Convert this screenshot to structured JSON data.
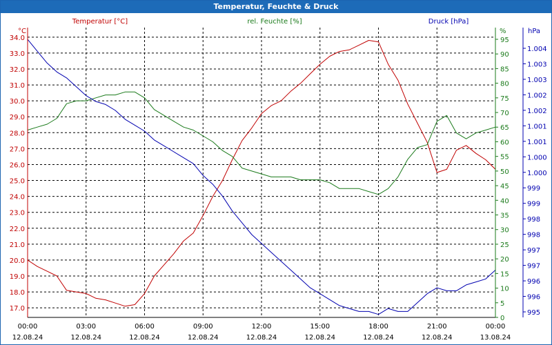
{
  "window": {
    "title": "Temperatur, Feuchte & Druck"
  },
  "colors": {
    "temperature": "#c00000",
    "humidity": "#1a7a1a",
    "pressure": "#0000b0",
    "grid": "#000000",
    "title_bar": "#1d6bb8"
  },
  "chart_data": {
    "type": "line",
    "title": "Temperatur, Feuchte & Druck",
    "grid": true,
    "x_ticks": [
      {
        "time": "00:00",
        "date": "12.08.24"
      },
      {
        "time": "03:00",
        "date": "12.08.24"
      },
      {
        "time": "06:00",
        "date": "12.08.24"
      },
      {
        "time": "09:00",
        "date": "12.08.24"
      },
      {
        "time": "12:00",
        "date": "12.08.24"
      },
      {
        "time": "15:00",
        "date": "12.08.24"
      },
      {
        "time": "18:00",
        "date": "12.08.24"
      },
      {
        "time": "21:00",
        "date": "12.08.24"
      },
      {
        "time": "00:00",
        "date": "13.08.24"
      }
    ],
    "x_range_hours": [
      0,
      24
    ],
    "axes": {
      "temperature": {
        "label": "Temperatur [°C]",
        "unit": "°C",
        "range": [
          16.4,
          34.6
        ],
        "ticks": [
          "17.0",
          "18.0",
          "19.0",
          "20.0",
          "21.0",
          "22.0",
          "23.0",
          "24.0",
          "25.0",
          "26.0",
          "27.0",
          "28.0",
          "29.0",
          "30.0",
          "31.0",
          "32.0",
          "33.0",
          "34.0"
        ]
      },
      "humidity": {
        "label": "rel. Feuchte [%]",
        "unit": "%",
        "range": [
          0,
          99
        ],
        "ticks": [
          "0",
          "5",
          "10",
          "15",
          "20",
          "25",
          "30",
          "35",
          "40",
          "45",
          "50",
          "55",
          "60",
          "65",
          "70",
          "75",
          "80",
          "85",
          "90",
          "95"
        ]
      },
      "pressure": {
        "label": "Druck [hPa]",
        "unit": "hPa",
        "range": [
          994.8,
          1004.6
        ],
        "ticks": [
          "995",
          "996",
          "996",
          "997",
          "997",
          "998",
          "998",
          "999",
          "999",
          "1.000",
          "1.000",
          "1.001",
          "1.001",
          "1.002",
          "1.002",
          "1.003",
          "1.003",
          "1.004"
        ]
      }
    },
    "series": [
      {
        "name": "Temperatur [°C]",
        "axis": "temperature",
        "x": [
          0,
          0.5,
          1,
          1.5,
          2,
          2.5,
          3,
          3.5,
          4,
          4.5,
          5,
          5.5,
          6,
          6.5,
          7,
          7.5,
          8,
          8.5,
          9,
          9.5,
          10,
          10.5,
          11,
          11.5,
          12,
          12.5,
          13,
          13.5,
          14,
          14.5,
          15,
          15.5,
          16,
          16.5,
          17,
          17.5,
          18,
          18.5,
          19,
          19.5,
          20,
          20.5,
          21,
          21.5,
          22,
          22.5,
          23,
          23.5,
          24
        ],
        "values": [
          20.0,
          19.6,
          19.3,
          19.0,
          18.1,
          18.0,
          17.9,
          17.6,
          17.5,
          17.3,
          17.1,
          17.2,
          17.9,
          19.0,
          19.7,
          20.4,
          21.2,
          21.7,
          22.8,
          24.0,
          25.0,
          26.3,
          27.5,
          28.3,
          29.2,
          29.7,
          30.0,
          30.6,
          31.1,
          31.7,
          32.3,
          32.8,
          33.1,
          33.2,
          33.5,
          33.8,
          33.7,
          32.3,
          31.3,
          29.8,
          28.6,
          27.4,
          25.5,
          25.7,
          26.9,
          27.2,
          26.7,
          26.3,
          25.7
        ]
      },
      {
        "name": "rel. Feuchte [%]",
        "axis": "humidity",
        "x": [
          0,
          0.5,
          1,
          1.5,
          2,
          2.5,
          3,
          3.5,
          4,
          4.5,
          5,
          5.5,
          6,
          6.5,
          7,
          7.5,
          8,
          8.5,
          9,
          9.5,
          10,
          10.5,
          11,
          11.5,
          12,
          12.5,
          13,
          13.5,
          14,
          14.5,
          15,
          15.5,
          16,
          16.5,
          17,
          17.5,
          18,
          18.5,
          19,
          19.5,
          20,
          20.5,
          21,
          21.5,
          22,
          22.5,
          23,
          23.5,
          24
        ],
        "values": [
          64,
          65,
          66,
          68,
          73,
          74,
          74,
          75,
          76,
          76,
          77,
          77,
          75,
          71,
          69,
          67,
          65,
          64,
          62,
          60,
          57,
          55,
          51,
          50,
          49,
          48,
          48,
          48,
          47,
          47,
          47,
          46,
          44,
          44,
          44,
          43,
          42,
          44,
          48,
          54,
          58,
          59,
          67,
          69,
          63,
          61,
          63,
          64,
          65
        ]
      },
      {
        "name": "Druck [hPa]",
        "axis": "pressure",
        "x": [
          0,
          0.5,
          1,
          1.5,
          2,
          2.5,
          3,
          3.5,
          4,
          4.5,
          5,
          5.5,
          6,
          6.5,
          7,
          7.5,
          8,
          8.5,
          9,
          9.5,
          10,
          10.5,
          11,
          11.5,
          12,
          12.5,
          13,
          13.5,
          14,
          14.5,
          15,
          15.5,
          16,
          16.5,
          17,
          17.5,
          18,
          18.5,
          19,
          19.5,
          20,
          20.5,
          21,
          21.5,
          22,
          22.5,
          23,
          23.5,
          24
        ],
        "values": [
          1004.2,
          1003.8,
          1003.4,
          1003.1,
          1002.9,
          1002.6,
          1002.3,
          1002.1,
          1002.0,
          1001.8,
          1001.5,
          1001.3,
          1001.1,
          1000.8,
          1000.6,
          1000.4,
          1000.2,
          1000.0,
          999.6,
          999.3,
          998.9,
          998.4,
          998.0,
          997.6,
          997.3,
          997.0,
          996.7,
          996.4,
          996.1,
          995.8,
          995.6,
          995.4,
          995.2,
          995.1,
          995.0,
          995.0,
          994.9,
          995.1,
          995.0,
          995.0,
          995.3,
          995.6,
          995.8,
          995.7,
          995.7,
          995.9,
          996.0,
          996.1,
          996.4
        ]
      }
    ]
  }
}
